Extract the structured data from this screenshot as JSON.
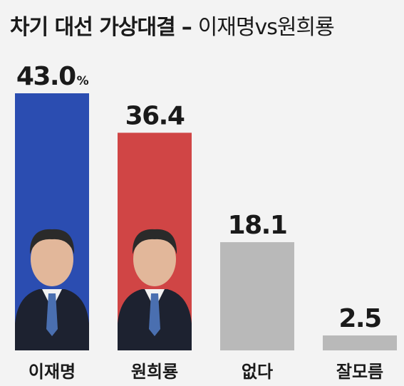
{
  "title_prefix": "차기 대선 가상대결",
  "title_suffix": "이재명vs원희룡",
  "title_dash": "–",
  "chart_data": {
    "type": "bar",
    "title": "차기 대선 가상대결 – 이재명vs원희룡",
    "categories": [
      "이재명",
      "원희룡",
      "없다",
      "잘모름"
    ],
    "values": [
      43.0,
      36.4,
      18.1,
      2.5
    ],
    "value_labels": [
      "43.0",
      "36.4",
      "18.1",
      "2.5"
    ],
    "unit": "%",
    "colors": [
      "#2b4db1",
      "#d04545",
      "#b9b9b9",
      "#b9b9b9"
    ],
    "ylim": [
      0,
      43.0
    ],
    "grid": false,
    "legend": "none"
  }
}
